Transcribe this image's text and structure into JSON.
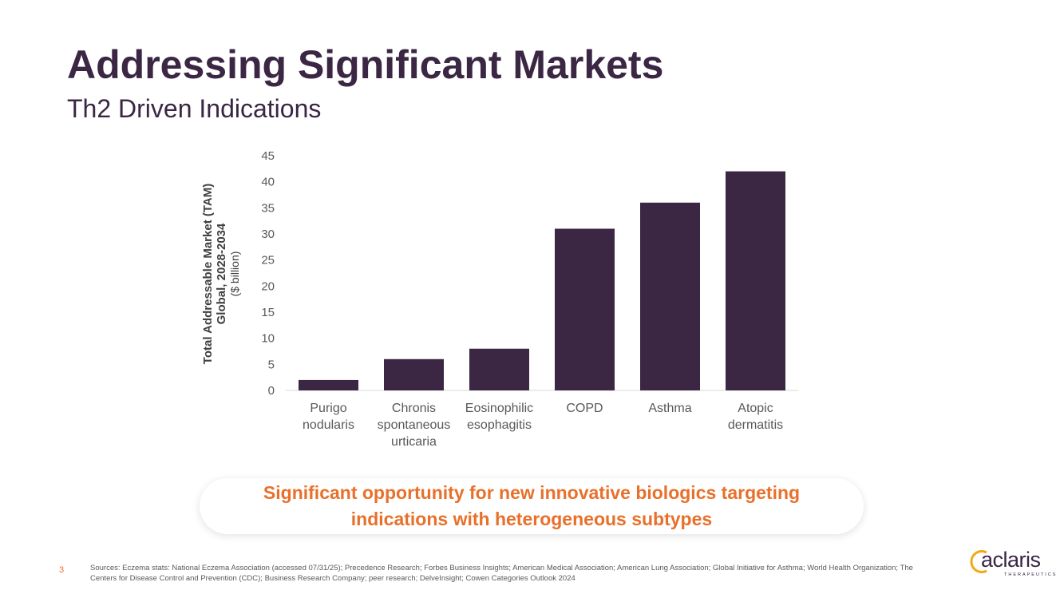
{
  "slide": {
    "title": "Addressing Significant Markets",
    "subtitle": "Th2 Driven Indications",
    "callout_line1": "Significant opportunity for new innovative biologics targeting",
    "callout_line2": "indications with heterogeneous subtypes",
    "page_number": "3",
    "sources": "Sources:  Eczema stats: National Eczema Association (accessed 07/31/25); Precedence Research; Forbes Business Insights; American Medical Association; American Lung Association; Global Initiative for Asthma; World Health Organization; The Centers for Disease Control and Prevention (CDC); Business Research Company; peer research; DelveInsight; Cowen Categories Outlook 2024",
    "logo_text": "aclaris",
    "logo_subtext": "THERAPEUTICS"
  },
  "colors": {
    "title": "#3b2644",
    "bar": "#3b2644",
    "accent": "#e8702a",
    "axis_text": "#595959"
  },
  "chart_data": {
    "type": "bar",
    "categories": [
      [
        "Purigo",
        "nodularis"
      ],
      [
        "Chronis",
        "spontaneous",
        "urticaria"
      ],
      [
        "Eosinophilic",
        "esophagitis"
      ],
      [
        "COPD"
      ],
      [
        "Asthma"
      ],
      [
        "Atopic",
        "dermatitis"
      ]
    ],
    "values": [
      2,
      6,
      8,
      31,
      36,
      42
    ],
    "ylabel_lines": [
      "Total Addressable Market (TAM)",
      "Global, 2028-2034"
    ],
    "ylabel_unit": "($ billion)",
    "ylim": [
      0,
      45
    ],
    "yticks": [
      0,
      5,
      10,
      15,
      20,
      25,
      30,
      35,
      40,
      45
    ],
    "grid": false,
    "legend": "none"
  }
}
